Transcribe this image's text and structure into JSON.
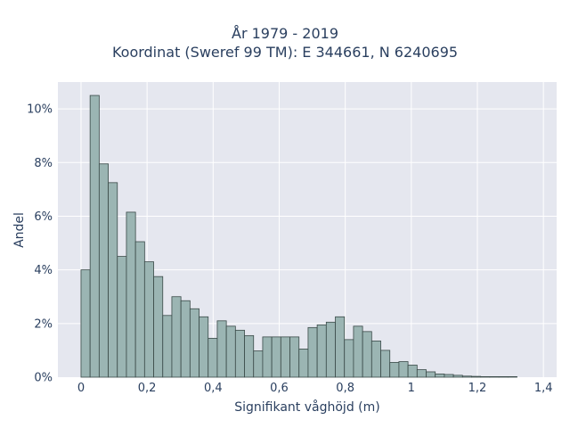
{
  "title": {
    "line1": "År 1979 - 2019",
    "line2": "Koordinat (Sweref 99 TM): E 344661, N 6240695"
  },
  "colors": {
    "plot_background": "#e5e7ef",
    "grid": "#ffffff",
    "bar_fill": "#9bb5b3",
    "bar_stroke": "#3a4a48",
    "text": "#2a3f5f"
  },
  "chart_data": {
    "type": "bar",
    "subtype": "histogram",
    "title": "År 1979 - 2019\nKoordinat (Sweref 99 TM): E 344661, N 6240695",
    "xlabel": "Signifikant våghöjd (m)",
    "ylabel": "Andel",
    "xlim": [
      -0.07,
      1.44
    ],
    "ylim": [
      0,
      11
    ],
    "grid": true,
    "x_ticks": [
      0,
      0.2,
      0.4,
      0.6,
      0.8,
      1,
      1.2,
      1.4
    ],
    "x_tick_labels": [
      "0",
      "0,2",
      "0,4",
      "0,6",
      "0,8",
      "1",
      "1,2",
      "1,4"
    ],
    "y_ticks": [
      0,
      2,
      4,
      6,
      8,
      10
    ],
    "y_tick_labels": [
      "0%",
      "2%",
      "4%",
      "6%",
      "8%",
      "10%"
    ],
    "bin_width": 0.0275,
    "bin_start": 0,
    "values": [
      4.0,
      10.5,
      7.95,
      7.25,
      4.5,
      6.15,
      5.05,
      4.3,
      3.75,
      2.3,
      3.0,
      2.85,
      2.55,
      2.25,
      1.45,
      2.1,
      1.9,
      1.75,
      1.55,
      0.98,
      1.5,
      1.5,
      1.5,
      1.5,
      1.05,
      1.85,
      1.95,
      2.05,
      2.25,
      1.4,
      1.9,
      1.7,
      1.35,
      1.0,
      0.55,
      0.58,
      0.45,
      0.28,
      0.2,
      0.12,
      0.1,
      0.07,
      0.04,
      0.03,
      0.02,
      0.02,
      0.02,
      0.02
    ]
  }
}
